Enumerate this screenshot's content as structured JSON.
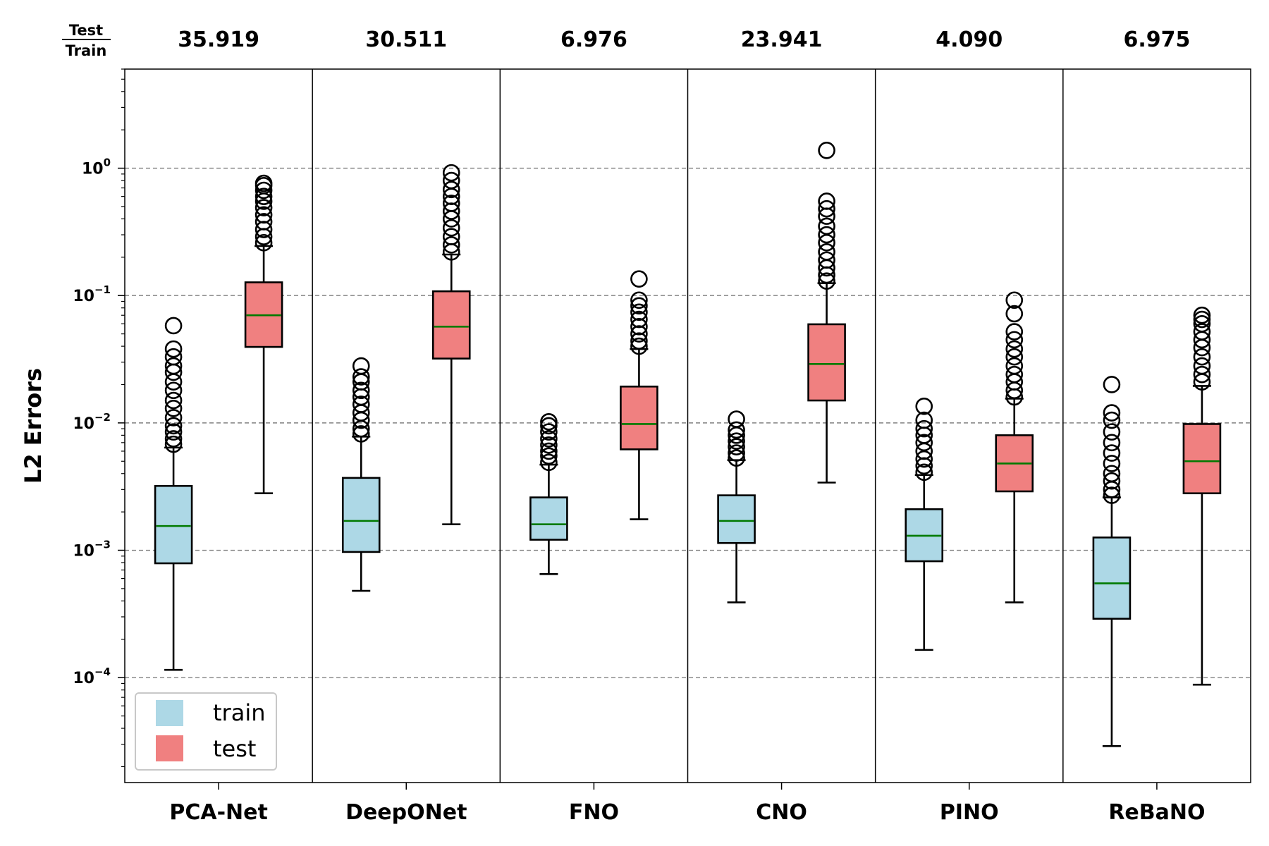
{
  "chart_data": {
    "type": "boxplot",
    "ylabel": "L2 Errors",
    "yscale": "log",
    "ylim": [
      1.5e-05,
      6.0
    ],
    "yticks": [
      {
        "value": 0.0001,
        "base": "10",
        "exp": "−4"
      },
      {
        "value": 0.001,
        "base": "10",
        "exp": "−3"
      },
      {
        "value": 0.01,
        "base": "10",
        "exp": "−2"
      },
      {
        "value": 0.1,
        "base": "10",
        "exp": "−1"
      },
      {
        "value": 1,
        "base": "10",
        "exp": "0"
      }
    ],
    "grid": "horizontal dashed at major ticks",
    "ratio_header": {
      "numerator": "Test",
      "denominator": "Train"
    },
    "legend": {
      "position": "lower-left",
      "entries": [
        {
          "label": "train",
          "color": "#add8e6"
        },
        {
          "label": "test",
          "color": "#f08080"
        }
      ]
    },
    "colors": {
      "train": "#add8e6",
      "test": "#f08080",
      "median": "#007a00",
      "grid": "#808080"
    },
    "categories": [
      "PCA-Net",
      "DeepONet",
      "FNO",
      "CNO",
      "PINO",
      "ReBaNO"
    ],
    "ratios": [
      "35.919",
      "30.511",
      "6.976",
      "23.941",
      "4.090",
      "6.975"
    ],
    "series": [
      {
        "name": "train",
        "boxes": [
          {
            "whislo": 0.000115,
            "q1": 0.00079,
            "med": 0.00155,
            "q3": 0.0032,
            "whishi": 0.0064,
            "fliers": [
              0.0068,
              0.0075,
              0.0085,
              0.0095,
              0.011,
              0.013,
              0.015,
              0.018,
              0.021,
              0.025,
              0.028,
              0.033,
              0.038,
              0.058
            ]
          },
          {
            "whislo": 0.00048,
            "q1": 0.00097,
            "med": 0.0017,
            "q3": 0.0037,
            "whishi": 0.0078,
            "fliers": [
              0.0082,
              0.009,
              0.0105,
              0.012,
              0.014,
              0.016,
              0.018,
              0.021,
              0.023,
              0.028
            ]
          },
          {
            "whislo": 0.00065,
            "q1": 0.00121,
            "med": 0.0016,
            "q3": 0.0026,
            "whishi": 0.0047,
            "fliers": [
              0.0049,
              0.0055,
              0.006,
              0.0067,
              0.0075,
              0.0085,
              0.0095,
              0.0102
            ]
          },
          {
            "whislo": 0.00039,
            "q1": 0.00114,
            "med": 0.0017,
            "q3": 0.0027,
            "whishi": 0.0051,
            "fliers": [
              0.0053,
              0.0058,
              0.0065,
              0.0072,
              0.008,
              0.0088,
              0.0107
            ]
          },
          {
            "whislo": 0.000165,
            "q1": 0.00082,
            "med": 0.0013,
            "q3": 0.0021,
            "whishi": 0.0039,
            "fliers": [
              0.0041,
              0.0046,
              0.0052,
              0.006,
              0.007,
              0.008,
              0.009,
              0.0105,
              0.0135
            ]
          },
          {
            "whislo": 2.9e-05,
            "q1": 0.00029,
            "med": 0.00055,
            "q3": 0.00126,
            "whishi": 0.0026,
            "fliers": [
              0.0027,
              0.003,
              0.0035,
              0.004,
              0.0048,
              0.0058,
              0.007,
              0.0085,
              0.0105,
              0.012,
              0.02
            ]
          }
        ]
      },
      {
        "name": "test",
        "boxes": [
          {
            "whislo": 0.0028,
            "q1": 0.0395,
            "med": 0.07,
            "q3": 0.127,
            "whishi": 0.245,
            "fliers": [
              0.26,
              0.29,
              0.33,
              0.38,
              0.43,
              0.49,
              0.55,
              0.6,
              0.67,
              0.73,
              0.76
            ]
          },
          {
            "whislo": 0.0016,
            "q1": 0.032,
            "med": 0.057,
            "q3": 0.108,
            "whishi": 0.21,
            "fliers": [
              0.22,
              0.25,
              0.29,
              0.34,
              0.4,
              0.46,
              0.53,
              0.6,
              0.68,
              0.8,
              0.92
            ]
          },
          {
            "whislo": 0.00175,
            "q1": 0.0062,
            "med": 0.0098,
            "q3": 0.0193,
            "whishi": 0.038,
            "fliers": [
              0.04,
              0.044,
              0.05,
              0.057,
              0.065,
              0.074,
              0.083,
              0.092,
              0.135
            ]
          },
          {
            "whislo": 0.0034,
            "q1": 0.015,
            "med": 0.029,
            "q3": 0.0595,
            "whishi": 0.125,
            "fliers": [
              0.13,
              0.145,
              0.165,
              0.19,
              0.22,
              0.26,
              0.3,
              0.35,
              0.42,
              0.48,
              0.55,
              1.38
            ]
          },
          {
            "whislo": 0.00039,
            "q1": 0.0029,
            "med": 0.0048,
            "q3": 0.008,
            "whishi": 0.0155,
            "fliers": [
              0.016,
              0.018,
              0.021,
              0.024,
              0.028,
              0.033,
              0.038,
              0.045,
              0.052,
              0.072,
              0.092
            ]
          },
          {
            "whislo": 8.8e-05,
            "q1": 0.0028,
            "med": 0.005,
            "q3": 0.0098,
            "whishi": 0.0195,
            "fliers": [
              0.021,
              0.024,
              0.028,
              0.033,
              0.039,
              0.045,
              0.052,
              0.06,
              0.065,
              0.07
            ]
          }
        ]
      }
    ]
  }
}
